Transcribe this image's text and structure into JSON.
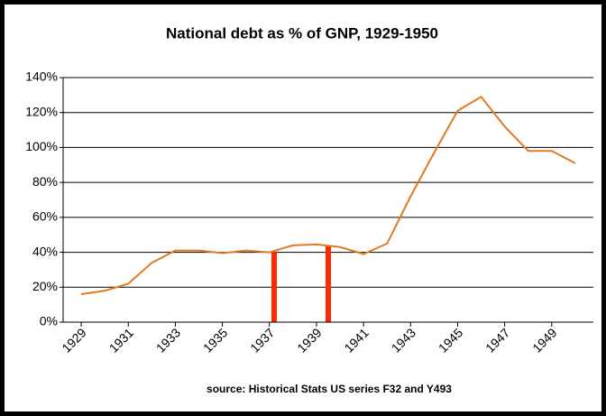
{
  "chart_data": {
    "type": "line",
    "title": "National debt as % of GNP, 1929-1950",
    "source": "source: Historical Stats US  series F32 and Y493",
    "x": [
      1929,
      1930,
      1931,
      1932,
      1933,
      1934,
      1935,
      1936,
      1937,
      1938,
      1939,
      1940,
      1941,
      1942,
      1943,
      1944,
      1945,
      1946,
      1947,
      1948,
      1949,
      1950
    ],
    "series": [
      {
        "name": "National debt as % of GNP",
        "color": "#e07b22",
        "values": [
          16,
          18,
          22,
          34,
          41,
          41,
          39.5,
          41,
          40,
          44,
          44.5,
          43,
          39,
          45,
          72,
          97,
          121,
          129,
          112,
          98,
          98,
          91
        ]
      }
    ],
    "highlights": [
      {
        "x": 1937.2,
        "value": 40,
        "color": "#ff2a00"
      },
      {
        "x": 1939.5,
        "value": 44,
        "color": "#ff2a00"
      }
    ],
    "xlim": [
      1928.23,
      1950.77
    ],
    "xticks": [
      1929,
      1931,
      1933,
      1935,
      1937,
      1939,
      1941,
      1943,
      1945,
      1947,
      1949
    ],
    "ylim": [
      0,
      140
    ],
    "yticks": [
      {
        "value": 0,
        "label": "0%"
      },
      {
        "value": 20,
        "label": "20%"
      },
      {
        "value": 40,
        "label": "40%"
      },
      {
        "value": 60,
        "label": "60%"
      },
      {
        "value": 80,
        "label": "80%"
      },
      {
        "value": 100,
        "label": "100%"
      },
      {
        "value": 120,
        "label": "120%"
      },
      {
        "value": 140,
        "label": "140%"
      }
    ],
    "grid": true
  }
}
